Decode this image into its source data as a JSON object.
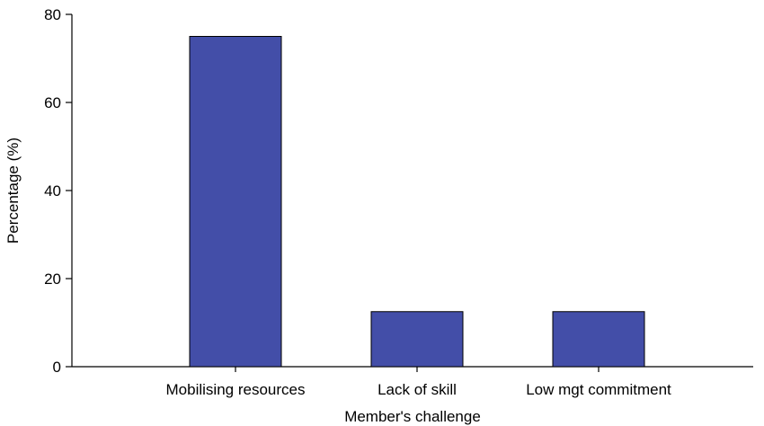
{
  "chart_data": {
    "type": "bar",
    "categories": [
      "Mobilising resources",
      "Lack of skill",
      "Low mgt commitment"
    ],
    "values": [
      75,
      12.5,
      12.5
    ],
    "title": "",
    "xlabel": "Member's challenge",
    "ylabel": "Percentage (%)",
    "ylim": [
      0,
      80
    ],
    "yticks": [
      0,
      20,
      40,
      60,
      80
    ],
    "grid": false,
    "legend": "none",
    "bar_color": "#434ea8"
  }
}
